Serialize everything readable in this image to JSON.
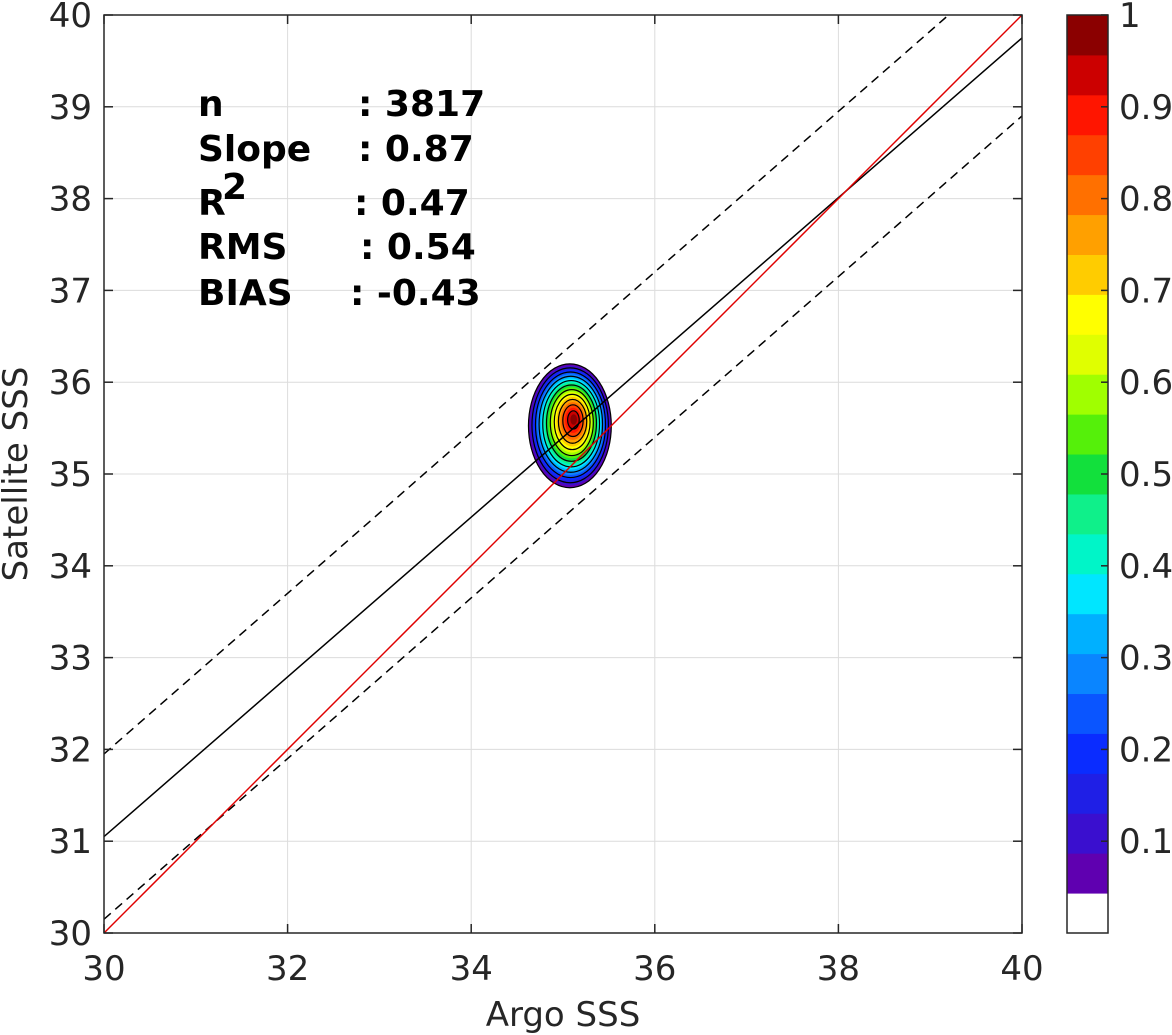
{
  "chart_data": {
    "type": "heatmap",
    "subtype": "density-contour-scatter",
    "xlabel": "Argo SSS",
    "ylabel": "Satellite SSS",
    "xlim": [
      30,
      40
    ],
    "ylim": [
      30,
      40
    ],
    "xticks": [
      "30",
      "32",
      "34",
      "36",
      "38",
      "40"
    ],
    "yticks": [
      "30",
      "31",
      "32",
      "33",
      "34",
      "35",
      "36",
      "37",
      "38",
      "39",
      "40"
    ],
    "grid": true,
    "stats": [
      {
        "label": "n",
        "sep": ":",
        "value": "3817"
      },
      {
        "label": "Slope",
        "sep": ":",
        "value": "0.87"
      },
      {
        "label": "R",
        "sup": "2",
        "sep": ":",
        "value": "0.47"
      },
      {
        "label": "RMS",
        "sep": ":",
        "value": "0.54"
      },
      {
        "label": "BIAS",
        "sep": ":",
        "value": "-0.43"
      }
    ],
    "lines": {
      "identity": {
        "color": "#e00000",
        "points": [
          [
            30,
            30
          ],
          [
            40,
            40
          ]
        ]
      },
      "fit": {
        "color": "#000000",
        "points": [
          [
            30,
            31.05
          ],
          [
            40,
            39.75
          ]
        ]
      },
      "fit_plus_band": {
        "color": "#000000",
        "style": "dashed",
        "points": [
          [
            30,
            31.95
          ],
          [
            39.2,
            40
          ]
        ]
      },
      "fit_minus_band": {
        "color": "#000000",
        "style": "dashed",
        "points": [
          [
            30,
            30.15
          ],
          [
            40,
            38.9
          ]
        ]
      }
    },
    "density": {
      "center": [
        35.12,
        35.6
      ],
      "extent_x": [
        34.6,
        35.55
      ],
      "extent_y": [
        34.85,
        36.2
      ],
      "levels": [
        0.1,
        0.2,
        0.3,
        0.4,
        0.5,
        0.6,
        0.7,
        0.8,
        0.9
      ]
    },
    "colorbar": {
      "range": [
        0,
        1
      ],
      "ticks": [
        "0.1",
        "0.2",
        "0.3",
        "0.4",
        "0.5",
        "0.6",
        "0.7",
        "0.8",
        "0.9",
        "1"
      ],
      "bands": [
        "#ffffff",
        "#5f00b0",
        "#3a0fcf",
        "#1f1fe6",
        "#0a2cff",
        "#0a55ff",
        "#0a85ff",
        "#00b0ff",
        "#00e6ff",
        "#00f5c8",
        "#0ff08a",
        "#12e03c",
        "#55f00a",
        "#a0ff00",
        "#e0ff00",
        "#ffff00",
        "#ffcc00",
        "#ffa000",
        "#ff7000",
        "#ff4000",
        "#ff1500",
        "#cc0000",
        "#8b0000"
      ]
    }
  }
}
